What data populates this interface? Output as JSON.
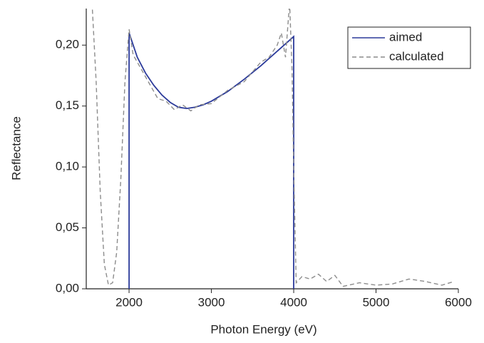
{
  "chart_data": {
    "type": "line",
    "x_label": "Photon Energy (eV)",
    "y_label": "Reflectance",
    "xlim": [
      1480,
      6000
    ],
    "ylim": [
      0,
      0.23
    ],
    "xticks": [
      2000,
      3000,
      4000,
      5000,
      6000
    ],
    "yticks": [
      {
        "value": 0,
        "label": "0,00"
      },
      {
        "value": 0.05,
        "label": "0,05"
      },
      {
        "value": 0.1,
        "label": "0,10"
      },
      {
        "value": 0.15,
        "label": "0,15"
      },
      {
        "value": 0.2,
        "label": "0,20"
      }
    ],
    "legend": "top-right",
    "series": [
      {
        "name": "aimed",
        "color": "#2b3a9a",
        "dashed": false,
        "x": [
          2000,
          2000,
          2100,
          2200,
          2300,
          2400,
          2500,
          2600,
          2700,
          2800,
          2900,
          3000,
          3200,
          3400,
          3600,
          3800,
          4000,
          4000
        ],
        "values": [
          0,
          0.21,
          0.19,
          0.177,
          0.167,
          0.159,
          0.153,
          0.149,
          0.148,
          0.149,
          0.151,
          0.154,
          0.162,
          0.172,
          0.183,
          0.195,
          0.207,
          0
        ]
      },
      {
        "name": "calculated",
        "color": "#8c8c8c",
        "dashed": true,
        "x": [
          1550,
          1600,
          1650,
          1700,
          1750,
          1800,
          1850,
          1900,
          1950,
          2000,
          2050,
          2150,
          2250,
          2350,
          2450,
          2550,
          2650,
          2750,
          2850,
          3000,
          3200,
          3400,
          3600,
          3700,
          3800,
          3850,
          3900,
          3950,
          3980,
          4000,
          4030,
          4100,
          4200,
          4300,
          4400,
          4500,
          4600,
          4800,
          5000,
          5200,
          5400,
          5600,
          5800,
          5950
        ],
        "values": [
          0.235,
          0.17,
          0.08,
          0.02,
          0.003,
          0.005,
          0.03,
          0.09,
          0.17,
          0.213,
          0.192,
          0.18,
          0.168,
          0.156,
          0.154,
          0.147,
          0.151,
          0.146,
          0.151,
          0.152,
          0.163,
          0.17,
          0.186,
          0.19,
          0.2,
          0.21,
          0.19,
          0.235,
          0.18,
          0.1,
          0.005,
          0.01,
          0.008,
          0.012,
          0.006,
          0.011,
          0.002,
          0.005,
          0.003,
          0.004,
          0.008,
          0.006,
          0.003,
          0.006
        ]
      }
    ]
  }
}
